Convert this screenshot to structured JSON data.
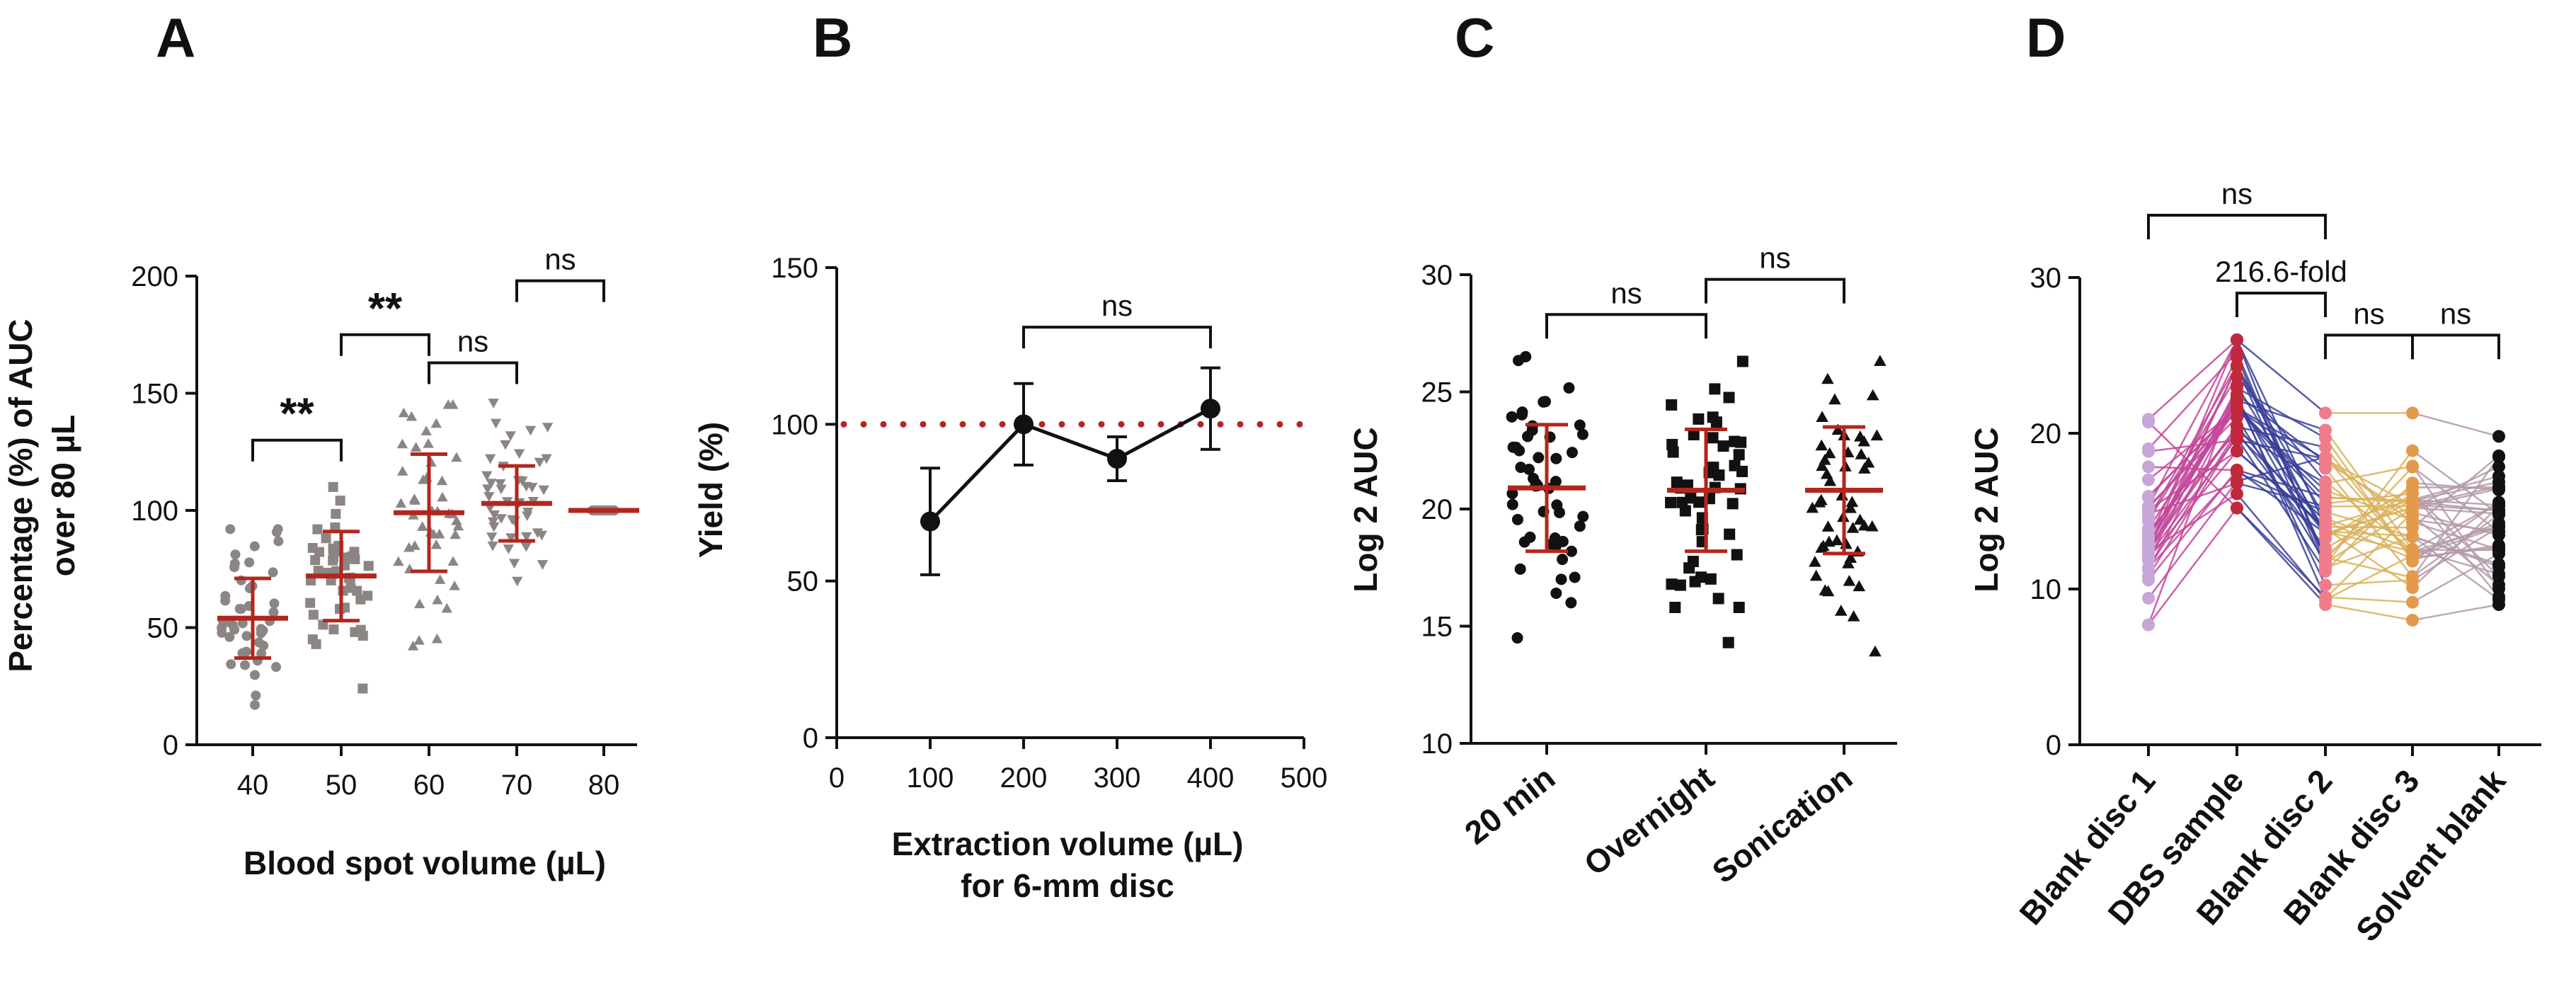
{
  "colors": {
    "axis": "#111111",
    "mean_sd": "#b3261e",
    "grey_points": "#8c8584",
    "black_points": "#111111",
    "reference_line": "#b3261e",
    "lavender": "#c7a6d8",
    "magenta": "#c2479a",
    "dbs_red": "#c0283c",
    "navy": "#3a3f9a",
    "pink": "#f07c8a",
    "gold": "#d9b15a",
    "orange": "#e39a4a",
    "grey_purple": "#b39aa8",
    "black": "#111111"
  },
  "chart_data": [
    {
      "panel_label": "A",
      "type": "scatter",
      "xlabel": "Blood spot volume (µL)",
      "ylabel_lines": [
        "Percentage (%) of AUC",
        "over 80 µL"
      ],
      "x_ticks": [
        "40",
        "50",
        "60",
        "70",
        "80"
      ],
      "y_ticks": [
        "0",
        "50",
        "100",
        "150",
        "200"
      ],
      "ylim": [
        0,
        200
      ],
      "point_shapes": [
        "circle",
        "square",
        "triangle",
        "triangle-down",
        "circle"
      ],
      "points_per_group": 45,
      "series": [
        {
          "category": "40",
          "mean": 54,
          "sd": 17,
          "min": 17,
          "max": 92
        },
        {
          "category": "50",
          "mean": 72,
          "sd": 19,
          "min": 24,
          "max": 110
        },
        {
          "category": "60",
          "mean": 99,
          "sd": 25,
          "min": 42,
          "max": 145
        },
        {
          "category": "70",
          "mean": 103,
          "sd": 16,
          "min": 70,
          "max": 146
        },
        {
          "category": "80",
          "mean": 100,
          "sd": 0,
          "min": 100,
          "max": 100
        }
      ],
      "comparisons": [
        {
          "from": "40",
          "to": "50",
          "label": "**",
          "y": 130
        },
        {
          "from": "50",
          "to": "60",
          "label": "**",
          "y": 175
        },
        {
          "from": "60",
          "to": "70",
          "label": "ns",
          "y": 163
        },
        {
          "from": "70",
          "to": "80",
          "label": "ns",
          "y": 198
        }
      ]
    },
    {
      "panel_label": "B",
      "type": "line",
      "xlabel_lines": [
        "Extraction volume (µL)",
        "for 6-mm disc"
      ],
      "ylabel": "Yield (%)",
      "x_ticks": [
        "0",
        "100",
        "200",
        "300",
        "400",
        "500"
      ],
      "y_ticks": [
        "0",
        "50",
        "100",
        "150"
      ],
      "xlim": [
        0,
        500
      ],
      "ylim": [
        0,
        150
      ],
      "reference_line": 100,
      "series": [
        {
          "x": [
            100,
            200,
            300,
            400
          ],
          "y": [
            69,
            100,
            89,
            105
          ],
          "err": [
            17,
            13,
            7,
            13
          ]
        }
      ],
      "comparisons": [
        {
          "from": 200,
          "to": 400,
          "label": "ns",
          "y": 131
        }
      ]
    },
    {
      "panel_label": "C",
      "type": "scatter",
      "ylabel": "Log 2 AUC",
      "categories": [
        "20 min",
        "Overnight",
        "Sonication"
      ],
      "y_ticks": [
        "10",
        "15",
        "20",
        "25",
        "30"
      ],
      "ylim": [
        10,
        30
      ],
      "point_shapes": [
        "circle",
        "square",
        "triangle"
      ],
      "points_per_group": 50,
      "series": [
        {
          "category": "20 min",
          "mean": 20.9,
          "sd": 2.7,
          "min": 14.5,
          "max": 26.5
        },
        {
          "category": "Overnight",
          "mean": 20.8,
          "sd": 2.6,
          "min": 14.3,
          "max": 26.3
        },
        {
          "category": "Sonication",
          "mean": 20.8,
          "sd": 2.7,
          "min": 13.9,
          "max": 26.3
        }
      ],
      "comparisons": [
        {
          "from": "20 min",
          "to": "Overnight",
          "label": "ns",
          "y": 28.3
        },
        {
          "from": "Overnight",
          "to": "Sonication",
          "label": "ns",
          "y": 29.8
        }
      ]
    },
    {
      "panel_label": "D",
      "type": "line",
      "ylabel": "Log 2 AUC",
      "categories": [
        "Blank disc 1",
        "DBS sample",
        "Blank disc 2",
        "Blank disc 3",
        "Solvent blank"
      ],
      "y_ticks": [
        "0",
        "10",
        "20",
        "30"
      ],
      "ylim": [
        0,
        30
      ],
      "n_pairs": 40,
      "group_ranges": [
        {
          "category": "Blank disc 1",
          "min": 7.7,
          "max": 20.9
        },
        {
          "category": "DBS sample",
          "min": 15.2,
          "max": 26.0
        },
        {
          "category": "Blank disc 2",
          "min": 9.0,
          "max": 21.3
        },
        {
          "category": "Blank disc 3",
          "min": 8.0,
          "max": 21.3
        },
        {
          "category": "Solvent blank",
          "min": 9.0,
          "max": 19.8
        }
      ],
      "comparisons": [
        {
          "from": "Blank disc 1",
          "to": "Blank disc 2",
          "label": "ns",
          "y": 34.0
        },
        {
          "from": "DBS sample",
          "to": "Blank disc 2",
          "label": "216.6-fold",
          "y": 29.0
        },
        {
          "from": "Blank disc 2",
          "to": "Blank disc 3",
          "label": "ns",
          "y": 26.3
        },
        {
          "from": "Blank disc 3",
          "to": "Solvent blank",
          "label": "ns",
          "y": 26.3
        }
      ]
    }
  ]
}
